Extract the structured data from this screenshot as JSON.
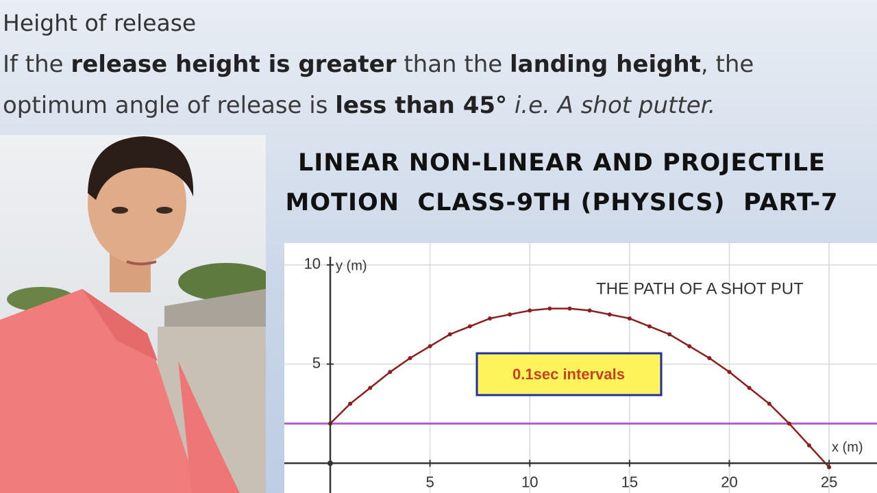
{
  "header": {
    "title": "Height of release",
    "line1": [
      "If the ",
      "release height is greater",
      " than the ",
      "landing height",
      ", the"
    ],
    "line2": [
      "optimum angle of release is ",
      "less than 45°",
      " i.e. A shot putter."
    ]
  },
  "video_title": [
    "LINEAR NON-LINEAR AND PROJECTILE",
    "MOTION  CLASS-9TH (PHYSICS)  PART-7"
  ],
  "chart_data": {
    "type": "line",
    "title": "THE PATH OF A SHOT PUT",
    "x_label": "x (m)",
    "y_label": "y (m)",
    "annotation": "0.1sec intervals",
    "x": [
      0,
      1,
      2,
      3,
      4,
      5,
      6,
      7,
      8,
      9,
      10,
      11,
      12,
      13,
      14,
      15,
      16,
      17,
      18,
      19,
      20,
      21,
      22,
      23,
      24,
      25
    ],
    "series": [
      {
        "color": "#8b1f1f",
        "values": [
          2.0,
          3.0,
          3.8,
          4.6,
          5.3,
          5.9,
          6.5,
          6.9,
          7.3,
          7.5,
          7.7,
          7.8,
          7.8,
          7.7,
          7.5,
          7.3,
          6.9,
          6.5,
          5.9,
          5.3,
          4.6,
          3.8,
          3.0,
          2.0,
          0.9,
          -0.2
        ]
      }
    ],
    "reference_line": 2,
    "reference_color": "#b35ccc",
    "xlim": [
      -2.3,
      27.4
    ],
    "ylim": [
      -1.5,
      11.1
    ],
    "xticks": [
      5,
      10,
      15,
      20,
      25
    ],
    "yticks": [
      5,
      10
    ],
    "grid": true
  }
}
